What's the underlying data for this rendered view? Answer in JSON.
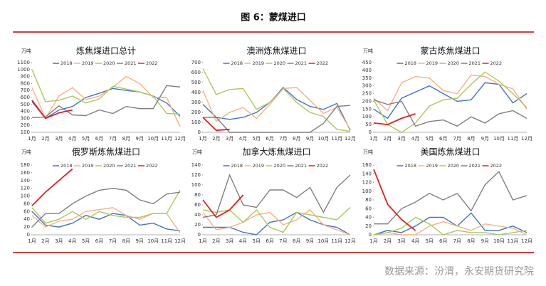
{
  "header": {
    "title": "图 6：蒙煤进口"
  },
  "source": "数据来源：汾渭，永安期货研究院",
  "chart_data": [
    {
      "type": "line",
      "title": "炼焦煤进口总计",
      "y_label": "万吨",
      "categories": [
        "1月",
        "2月",
        "3月",
        "4月",
        "5月",
        "6月",
        "7月",
        "8月",
        "9月",
        "10月",
        "11月",
        "12月"
      ],
      "ylim": [
        100,
        1100
      ],
      "yticks": [
        100,
        200,
        300,
        400,
        500,
        600,
        700,
        800,
        900,
        1000,
        1100
      ],
      "series": [
        {
          "name": "2018",
          "color": "#4472c4",
          "values": [
            540,
            300,
            420,
            470,
            600,
            660,
            730,
            700,
            680,
            620,
            520,
            330
          ]
        },
        {
          "name": "2019",
          "color": "#f4b183",
          "values": [
            740,
            300,
            620,
            740,
            570,
            620,
            750,
            900,
            800,
            600,
            600,
            180
          ]
        },
        {
          "name": "2020",
          "color": "#a9c95a",
          "values": [
            1000,
            540,
            560,
            620,
            520,
            580,
            760,
            720,
            680,
            620,
            370,
            360
          ]
        },
        {
          "name": "2021",
          "color": "#7f7f7f",
          "values": [
            310,
            320,
            480,
            350,
            340,
            420,
            370,
            470,
            440,
            440,
            770,
            750
          ]
        },
        {
          "name": "2022",
          "color": "#e02020",
          "values": [
            560,
            300,
            380,
            420,
            null,
            null,
            null,
            null,
            null,
            null,
            null,
            null
          ]
        }
      ]
    },
    {
      "type": "line",
      "title": "澳洲炼焦煤进口",
      "categories": [
        "1月",
        "2月",
        "3月",
        "4月",
        "5月",
        "6月",
        "7月",
        "8月",
        "9月",
        "10月",
        "11月",
        "12月"
      ],
      "ylim": [
        0,
        700
      ],
      "yticks": [
        0,
        100,
        200,
        300,
        400,
        500,
        600,
        700
      ],
      "series": [
        {
          "name": "2018",
          "color": "#4472c4",
          "values": [
            280,
            150,
            130,
            150,
            200,
            300,
            450,
            330,
            260,
            230,
            290,
            20
          ]
        },
        {
          "name": "2019",
          "color": "#f4b183",
          "values": [
            420,
            110,
            200,
            250,
            140,
            280,
            440,
            450,
            320,
            190,
            250,
            30
          ]
        },
        {
          "name": "2020",
          "color": "#a9c95a",
          "values": [
            640,
            380,
            430,
            440,
            230,
            300,
            440,
            300,
            200,
            160,
            30,
            10
          ]
        },
        {
          "name": "2021",
          "color": "#7f7f7f",
          "values": [
            150,
            150,
            0,
            0,
            0,
            0,
            0,
            0,
            0,
            90,
            260,
            270
          ]
        },
        {
          "name": "2022",
          "color": "#e02020",
          "values": [
            150,
            20,
            30,
            null,
            null,
            null,
            null,
            null,
            null,
            null,
            null,
            null
          ]
        }
      ]
    },
    {
      "type": "line",
      "title": "蒙古炼焦煤进口",
      "y_label": "万吨",
      "categories": [
        "1月",
        "2月",
        "3月",
        "4月",
        "5月",
        "6月",
        "7月",
        "8月",
        "9月",
        "10月",
        "11月",
        "12月"
      ],
      "ylim": [
        0,
        450
      ],
      "yticks": [
        0,
        50,
        100,
        150,
        200,
        250,
        300,
        350,
        400,
        450
      ],
      "series": [
        {
          "name": "2018",
          "color": "#4472c4",
          "values": [
            150,
            90,
            220,
            260,
            300,
            250,
            200,
            210,
            320,
            310,
            190,
            250
          ]
        },
        {
          "name": "2019",
          "color": "#f4b183",
          "values": [
            220,
            140,
            320,
            360,
            350,
            270,
            250,
            370,
            360,
            310,
            280,
            150
          ]
        },
        {
          "name": "2020",
          "color": "#a9c95a",
          "values": [
            210,
            50,
            0,
            60,
            170,
            210,
            220,
            310,
            390,
            330,
            250,
            160
          ]
        },
        {
          "name": "2021",
          "color": "#7f7f7f",
          "values": [
            210,
            180,
            200,
            40,
            70,
            80,
            40,
            100,
            60,
            120,
            140,
            90
          ]
        },
        {
          "name": "2022",
          "color": "#e02020",
          "values": [
            60,
            50,
            90,
            120,
            null,
            null,
            null,
            null,
            null,
            null,
            null,
            null
          ]
        }
      ]
    },
    {
      "type": "line",
      "title": "俄罗斯炼焦煤进口",
      "y_label": "万吨",
      "categories": [
        "1月",
        "2月",
        "3月",
        "4月",
        "5月",
        "6月",
        "7月",
        "8月",
        "9月",
        "10月",
        "11月",
        "12月"
      ],
      "ylim": [
        0,
        180
      ],
      "yticks": [
        0,
        20,
        40,
        60,
        80,
        100,
        120,
        140,
        160,
        180
      ],
      "series": [
        {
          "name": "2018",
          "color": "#4472c4",
          "values": [
            60,
            25,
            20,
            30,
            50,
            40,
            55,
            50,
            25,
            30,
            15,
            10
          ]
        },
        {
          "name": "2019",
          "color": "#f4b183",
          "values": [
            50,
            20,
            35,
            40,
            60,
            65,
            70,
            50,
            40,
            55,
            55,
            5
          ]
        },
        {
          "name": "2020",
          "color": "#a9c95a",
          "values": [
            70,
            30,
            40,
            60,
            40,
            60,
            50,
            45,
            45,
            55,
            55,
            115
          ]
        },
        {
          "name": "2021",
          "color": "#7f7f7f",
          "values": [
            20,
            55,
            55,
            80,
            100,
            115,
            120,
            115,
            90,
            80,
            105,
            110
          ]
        },
        {
          "name": "2022",
          "color": "#e02020",
          "values": [
            75,
            110,
            140,
            170,
            null,
            null,
            null,
            null,
            null,
            null,
            null,
            null
          ]
        }
      ]
    },
    {
      "type": "line",
      "title": "加拿大炼焦煤进口",
      "y_label": "万吨",
      "categories": [
        "1月",
        "2月",
        "3月",
        "4月",
        "5月",
        "6月",
        "7月",
        "8月",
        "9月",
        "10月",
        "11月",
        "12月"
      ],
      "ylim": [
        0,
        140
      ],
      "yticks": [
        0,
        20,
        40,
        60,
        80,
        100,
        120,
        140
      ],
      "series": [
        {
          "name": "2018",
          "color": "#4472c4",
          "values": [
            15,
            15,
            15,
            5,
            0,
            25,
            30,
            45,
            30,
            20,
            15,
            0
          ]
        },
        {
          "name": "2019",
          "color": "#f4b183",
          "values": [
            45,
            10,
            15,
            25,
            40,
            45,
            20,
            30,
            50,
            20,
            10,
            0
          ]
        },
        {
          "name": "2020",
          "color": "#a9c95a",
          "values": [
            50,
            45,
            50,
            25,
            50,
            15,
            5,
            45,
            40,
            35,
            30,
            55
          ]
        },
        {
          "name": "2021",
          "color": "#7f7f7f",
          "values": [
            35,
            40,
            120,
            60,
            55,
            90,
            90,
            75,
            95,
            45,
            95,
            120
          ]
        },
        {
          "name": "2022",
          "color": "#e02020",
          "values": [
            70,
            35,
            50,
            80,
            null,
            null,
            null,
            null,
            null,
            null,
            null,
            null
          ]
        }
      ]
    },
    {
      "type": "line",
      "title": "美国炼焦煤进口",
      "y_label": "万吨",
      "categories": [
        "1月",
        "2月",
        "3月",
        "4月",
        "5月",
        "6月",
        "7月",
        "8月",
        "9月",
        "10月",
        "11月",
        "12月"
      ],
      "ylim": [
        0,
        160
      ],
      "yticks": [
        0,
        20,
        40,
        60,
        80,
        100,
        120,
        140,
        160
      ],
      "series": [
        {
          "name": "2018",
          "color": "#4472c4",
          "values": [
            0,
            10,
            5,
            20,
            40,
            40,
            20,
            50,
            10,
            10,
            20,
            5
          ]
        },
        {
          "name": "2019",
          "color": "#f4b183",
          "values": [
            0,
            5,
            0,
            0,
            20,
            30,
            20,
            10,
            25,
            20,
            15,
            0
          ]
        },
        {
          "name": "2020",
          "color": "#a9c95a",
          "values": [
            0,
            5,
            15,
            40,
            25,
            0,
            10,
            5,
            5,
            0,
            5,
            10
          ]
        },
        {
          "name": "2021",
          "color": "#7f7f7f",
          "values": [
            25,
            25,
            60,
            75,
            95,
            80,
            95,
            55,
            115,
            145,
            80,
            90
          ]
        },
        {
          "name": "2022",
          "color": "#e02020",
          "values": [
            150,
            70,
            35,
            10,
            null,
            null,
            null,
            null,
            null,
            null,
            null,
            null
          ]
        }
      ]
    }
  ]
}
